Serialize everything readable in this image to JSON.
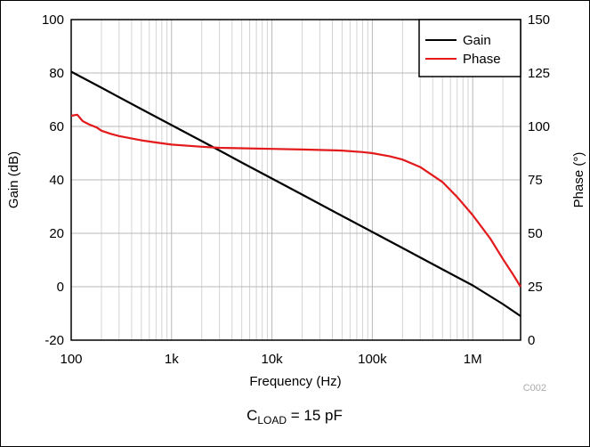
{
  "chart_data": {
    "type": "line",
    "xlabel": "Frequency (Hz)",
    "ylabel": "Gain (dB)",
    "y2label": "Phase (°)",
    "xscale": "log",
    "xlim": [
      100,
      3000000
    ],
    "ylim": [
      -20,
      100
    ],
    "y2lim": [
      0,
      150
    ],
    "grid": true,
    "legend_position": "top-right",
    "x_ticks": [
      {
        "value": 100,
        "label": "100"
      },
      {
        "value": 1000,
        "label": "1k"
      },
      {
        "value": 10000,
        "label": "10k"
      },
      {
        "value": 100000,
        "label": "100k"
      },
      {
        "value": 1000000,
        "label": "1M"
      }
    ],
    "y_ticks": [
      "100",
      "80",
      "60",
      "40",
      "20",
      "0",
      "-20"
    ],
    "y2_ticks": [
      "150",
      "125",
      "100",
      "75",
      "50",
      "25",
      "0"
    ],
    "series": [
      {
        "name": "Gain",
        "axis": "left",
        "color": "#000000",
        "points": [
          [
            100,
            80.5
          ],
          [
            200,
            74.5
          ],
          [
            500,
            66.5
          ],
          [
            1000,
            60.5
          ],
          [
            2000,
            54.5
          ],
          [
            3000,
            51
          ],
          [
            5000,
            46.5
          ],
          [
            10000,
            40.5
          ],
          [
            20000,
            34.5
          ],
          [
            50000,
            26.5
          ],
          [
            100000,
            20.5
          ],
          [
            200000,
            14.5
          ],
          [
            500000,
            6.5
          ],
          [
            1000000,
            0.5
          ],
          [
            2000000,
            -6.5
          ],
          [
            3000000,
            -11
          ]
        ]
      },
      {
        "name": "Phase",
        "axis": "right",
        "color": "#e31a1c",
        "points": [
          [
            100,
            105
          ],
          [
            115,
            105.5
          ],
          [
            130,
            102.5
          ],
          [
            150,
            101
          ],
          [
            180,
            99.5
          ],
          [
            200,
            98
          ],
          [
            250,
            96.5
          ],
          [
            300,
            95.5
          ],
          [
            500,
            93.5
          ],
          [
            700,
            92.5
          ],
          [
            1000,
            91.5
          ],
          [
            2000,
            90.5
          ],
          [
            3000,
            90
          ],
          [
            5000,
            89.8
          ],
          [
            10000,
            89.5
          ],
          [
            20000,
            89.2
          ],
          [
            50000,
            88.7
          ],
          [
            80000,
            88
          ],
          [
            100000,
            87.5
          ],
          [
            150000,
            86
          ],
          [
            200000,
            84.5
          ],
          [
            300000,
            81
          ],
          [
            500000,
            74
          ],
          [
            700000,
            67
          ],
          [
            1000000,
            58.5
          ],
          [
            1500000,
            47.5
          ],
          [
            2000000,
            38
          ],
          [
            2500000,
            31
          ],
          [
            3000000,
            25
          ]
        ]
      }
    ]
  },
  "figure_code": "C002",
  "caption": {
    "main": "C",
    "subscript": "LOAD",
    "rest": " = 15 pF"
  }
}
